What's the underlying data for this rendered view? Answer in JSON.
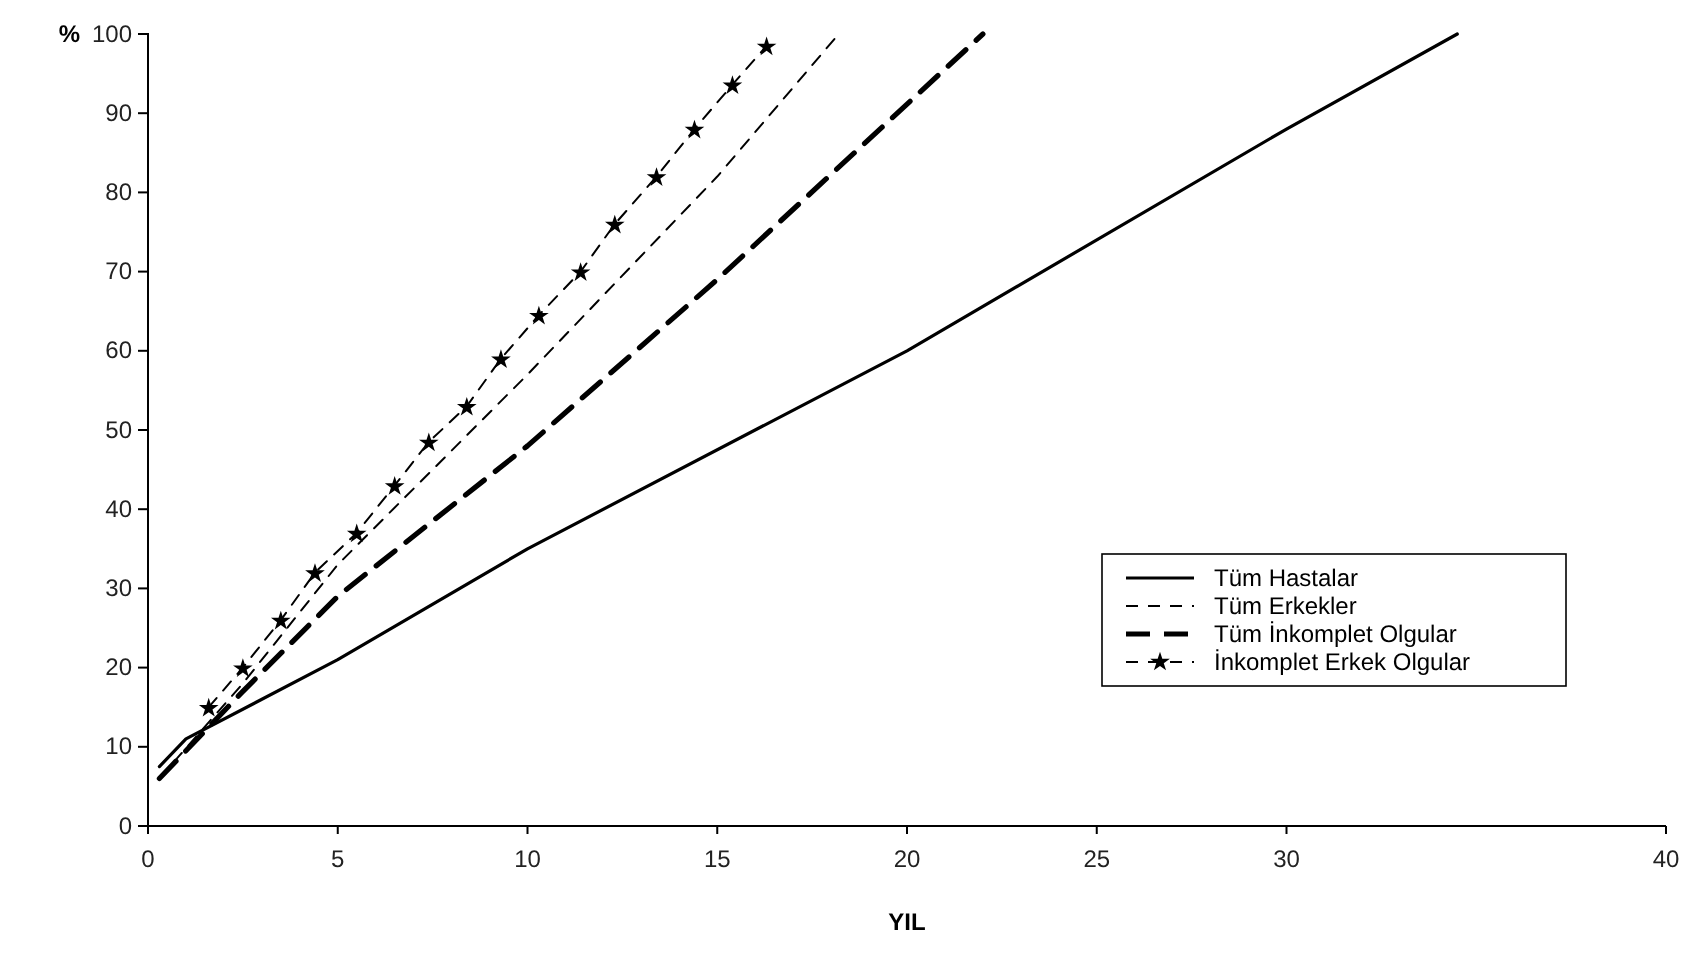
{
  "chart_data": {
    "type": "line",
    "xlabel": "YIL",
    "ylabel": "%",
    "xlim": [
      0,
      40
    ],
    "xticks": [
      0,
      5,
      10,
      15,
      20,
      25,
      30,
      40
    ],
    "ylim": [
      0,
      100
    ],
    "yticks": [
      0,
      10,
      20,
      30,
      40,
      50,
      60,
      70,
      80,
      90,
      100
    ],
    "grid": false,
    "legend": "bottom right",
    "series": [
      {
        "name": "Tüm Hastalar",
        "color": "#000000",
        "line_style": "solid",
        "marker": "none",
        "x": [
          0.3,
          1,
          5,
          10,
          20,
          30,
          34.5
        ],
        "values": [
          7.5,
          11,
          21,
          35,
          60,
          88,
          100
        ]
      },
      {
        "name": "Tüm Erkekler",
        "color": "#000000",
        "line_style": "dashed",
        "marker": "none",
        "x": [
          0.3,
          2.5,
          5,
          10,
          15,
          18.2
        ],
        "values": [
          6,
          18,
          33,
          57,
          82,
          100
        ]
      },
      {
        "name": "Tüm İnkomplet Olgular",
        "color": "#000000",
        "line_style": "dashed",
        "marker": "none",
        "x": [
          0.3,
          2.5,
          5,
          10,
          15,
          22
        ],
        "values": [
          6,
          17,
          29,
          48,
          69,
          100
        ]
      },
      {
        "name": "İnkomplet Erkek Olgular",
        "color": "#000000",
        "line_style": "dashed",
        "marker": "star",
        "x": [
          1.6,
          2.5,
          3.5,
          4.4,
          5.5,
          6.5,
          7.4,
          8.4,
          9.3,
          10.3,
          11.4,
          12.3,
          13.4,
          14.4,
          15.4,
          16.3
        ],
        "values": [
          15,
          20,
          26,
          32,
          37,
          43,
          48.5,
          53,
          59,
          64.5,
          70,
          76,
          82,
          88,
          93.6,
          98.5
        ]
      }
    ]
  }
}
